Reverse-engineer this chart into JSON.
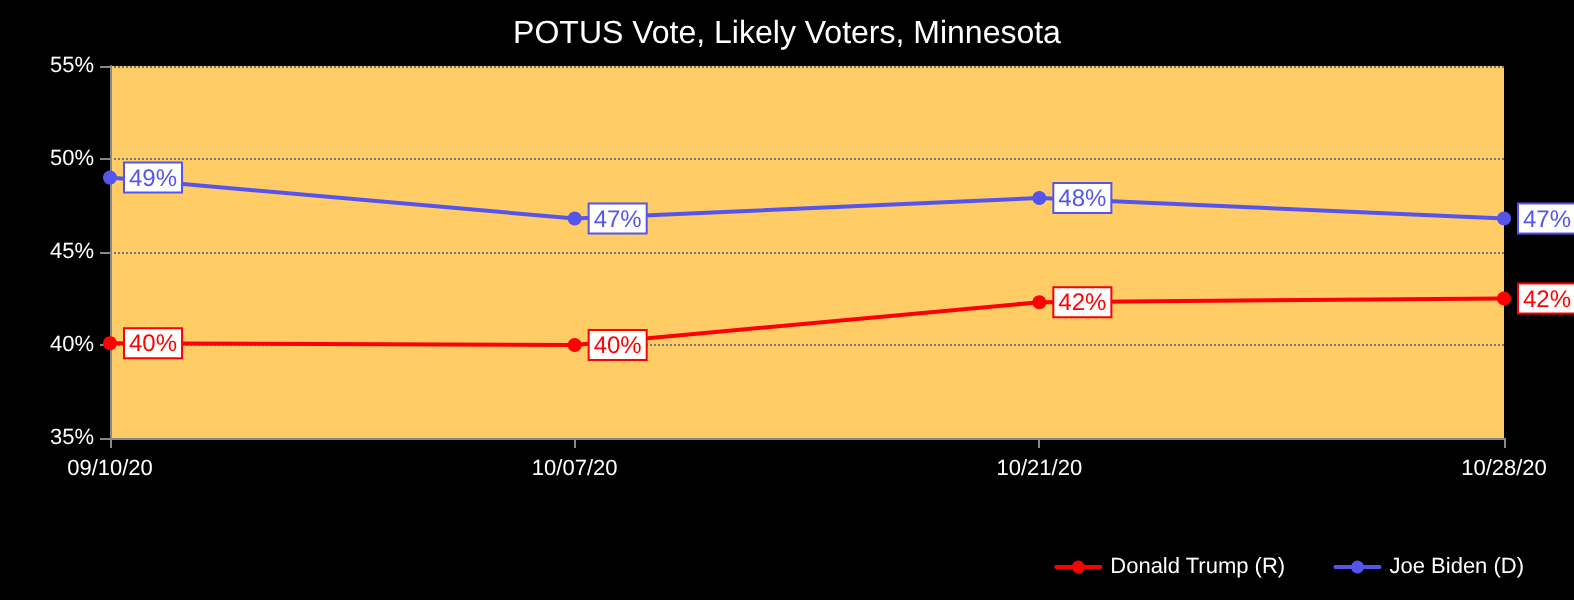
{
  "chart_data": {
    "type": "line",
    "title": "POTUS Vote, Likely Voters, Minnesota",
    "categories": [
      "09/10/20",
      "10/07/20",
      "10/21/20",
      "10/28/20"
    ],
    "series": [
      {
        "name": "Donald Trump (R)",
        "color": "#ff0000",
        "values": [
          40.1,
          40.0,
          42.3,
          42.5
        ],
        "value_labels": [
          "40%",
          "40%",
          "42%",
          "42%"
        ]
      },
      {
        "name": "Joe Biden (D)",
        "color": "#5555ee",
        "values": [
          49.0,
          46.8,
          47.9,
          46.8
        ],
        "value_labels": [
          "49%",
          "47%",
          "48%",
          "47%"
        ]
      }
    ],
    "ylim": [
      35,
      55
    ],
    "yticks": [
      {
        "value": 35,
        "label": "35%"
      },
      {
        "value": 40,
        "label": "40%"
      },
      {
        "value": 45,
        "label": "45%"
      },
      {
        "value": 50,
        "label": "50%"
      },
      {
        "value": 55,
        "label": "55%"
      }
    ],
    "grid": "y",
    "legend": "bottom right",
    "marker": "circle",
    "line_style": "solid"
  }
}
